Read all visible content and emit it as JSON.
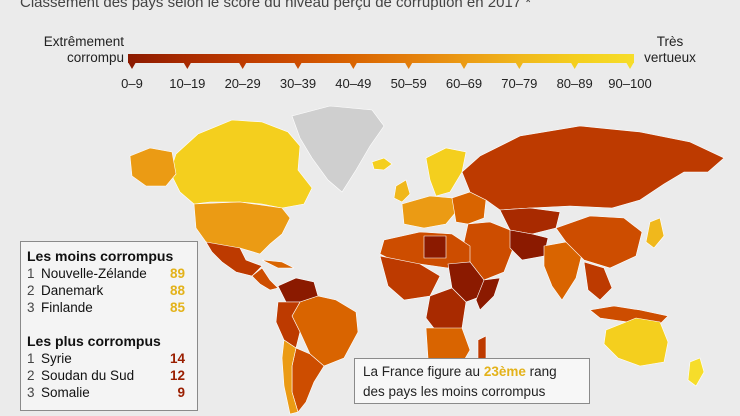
{
  "subtitle": "Classement des pays selon le score du niveau perçu de corruption en 2017 *",
  "legend": {
    "left_line1": "Extrêmement",
    "left_line2": "corrompu",
    "right_line1": "Très",
    "right_line2": "vertueux",
    "bins": [
      "0–9",
      "10–19",
      "20–29",
      "30–39",
      "40–49",
      "50–59",
      "60–69",
      "70–79",
      "80–89",
      "90–100"
    ],
    "colors": [
      "#8b1a00",
      "#a82a00",
      "#bd3a00",
      "#cd4d00",
      "#d96400",
      "#e37e0b",
      "#eb9b14",
      "#f0b81c",
      "#f4cf1e",
      "#f6dd2a"
    ]
  },
  "map_colors": {
    "ocean": "#ebebeb",
    "greenland": "#cfcfcf",
    "border": "#ffffff"
  },
  "least_corrupt": {
    "title": "Les moins corrompus",
    "items": [
      {
        "rank": "1",
        "country": "Nouvelle-Zélande",
        "score": "89"
      },
      {
        "rank": "2",
        "country": "Danemark",
        "score": "88"
      },
      {
        "rank": "3",
        "country": "Finlande",
        "score": "85"
      }
    ],
    "score_color": "#e3b21a"
  },
  "most_corrupt": {
    "title": "Les plus corrompus",
    "items": [
      {
        "rank": "1",
        "country": "Syrie",
        "score": "14"
      },
      {
        "rank": "2",
        "country": "Soudan du Sud",
        "score": "12"
      },
      {
        "rank": "3",
        "country": "Somalie",
        "score": "9"
      }
    ],
    "score_color": "#9a1e00"
  },
  "france_note": {
    "before": "La France figure au ",
    "highlight": "23ème",
    "after": " rang",
    "line2": "des pays les moins corrompus"
  }
}
